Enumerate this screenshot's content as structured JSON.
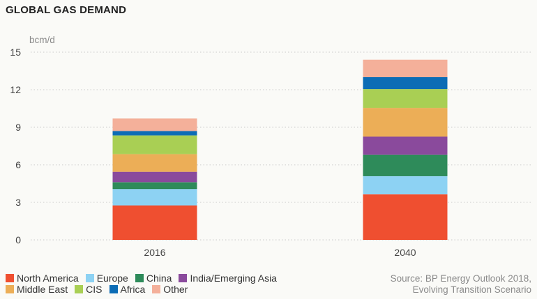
{
  "chart_data": {
    "type": "bar",
    "stacked": true,
    "title": "GLOBAL GAS DEMAND",
    "ylabel": "bcm/d",
    "ylim": [
      0,
      15
    ],
    "yticks": [
      0,
      3,
      6,
      9,
      12,
      15
    ],
    "categories": [
      "2016",
      "2040"
    ],
    "series": [
      {
        "name": "North America",
        "color": "#ef4f30",
        "values": [
          2.75,
          3.65
        ]
      },
      {
        "name": "Europe",
        "color": "#8dd2f3",
        "values": [
          1.3,
          1.45
        ]
      },
      {
        "name": "China",
        "color": "#2e8b5a",
        "values": [
          0.55,
          1.7
        ]
      },
      {
        "name": "India/Emerging Asia",
        "color": "#8a4a9c",
        "values": [
          0.85,
          1.45
        ]
      },
      {
        "name": "Middle East",
        "color": "#ecae57",
        "values": [
          1.4,
          2.3
        ]
      },
      {
        "name": "CIS",
        "color": "#a9cf54",
        "values": [
          1.5,
          1.5
        ]
      },
      {
        "name": "Africa",
        "color": "#0c6cb5",
        "values": [
          0.35,
          0.95
        ]
      },
      {
        "name": "Other",
        "color": "#f4b09a",
        "values": [
          1.0,
          1.4
        ]
      }
    ]
  },
  "legend": {
    "row1": [
      "North America",
      "Europe",
      "China",
      "India/Emerging Asia"
    ],
    "row2": [
      "Middle East",
      "CIS",
      "Africa",
      "Other"
    ]
  },
  "source": {
    "line1": "Source: BP Energy Outlook 2018,",
    "line2": "Evolving Transition Scenario"
  }
}
